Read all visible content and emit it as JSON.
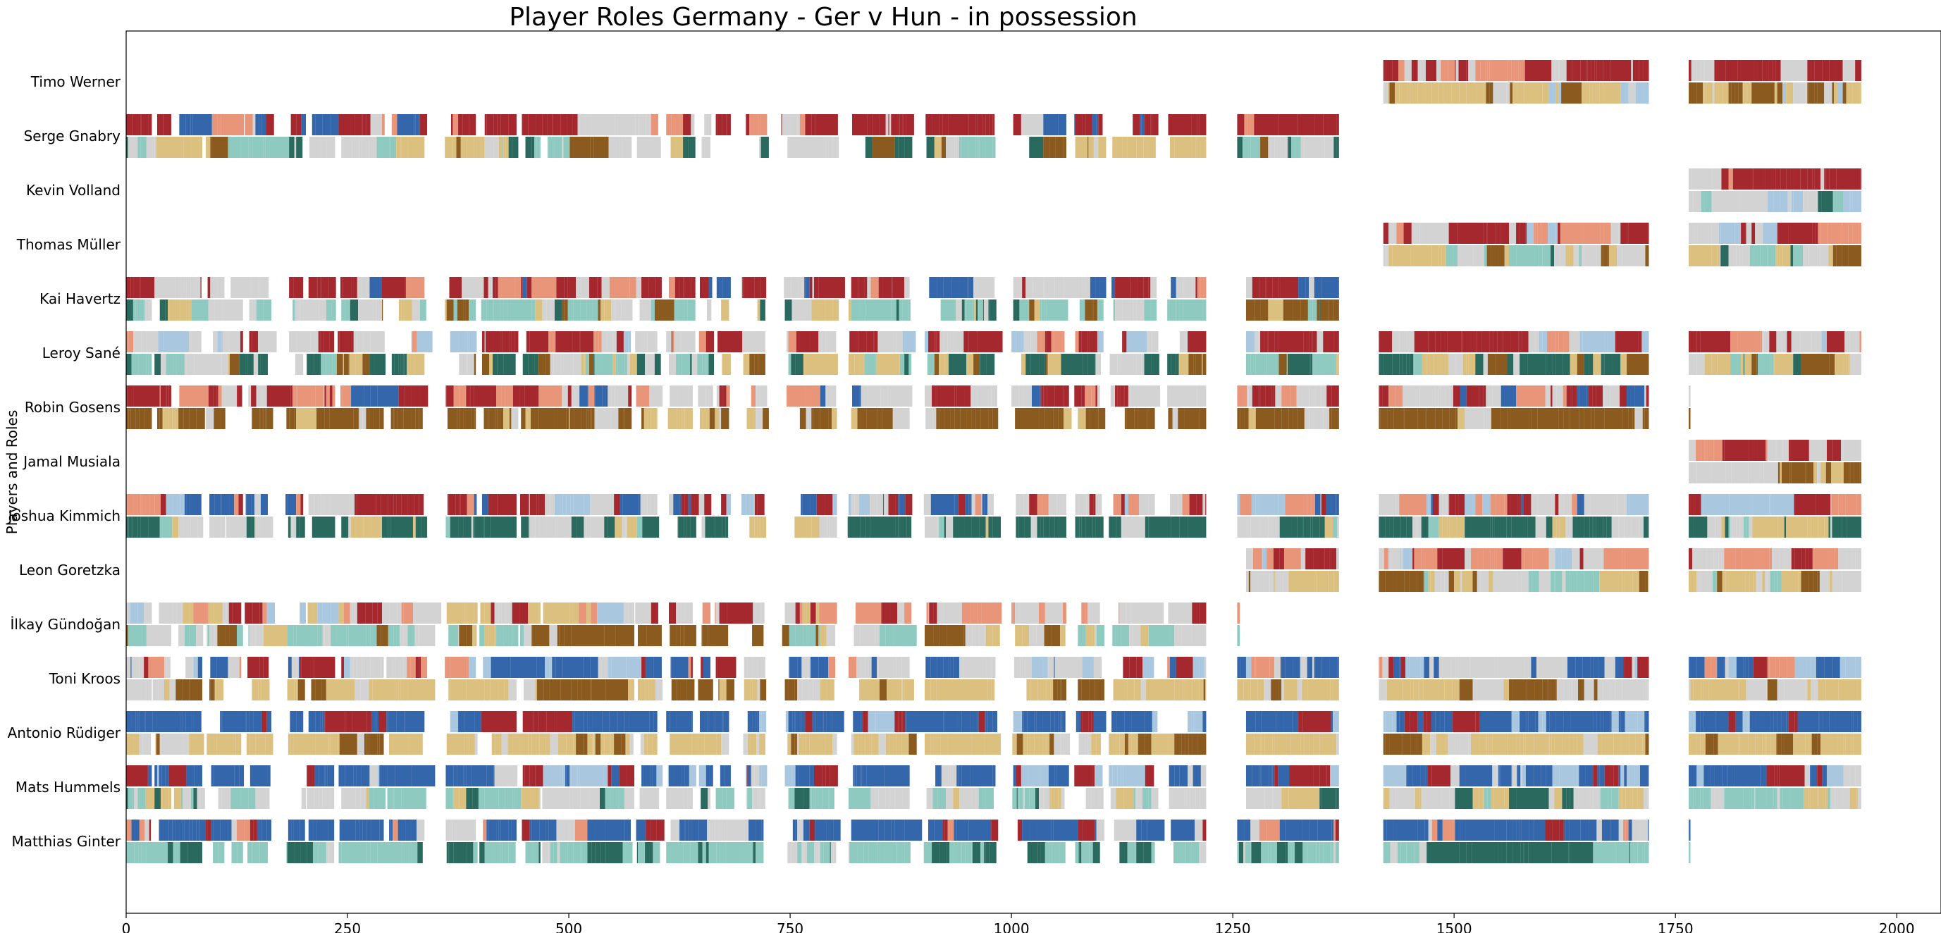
{
  "chart_data": {
    "type": "bar",
    "orientation": "horizontal-timeline",
    "title": "Player Roles Germany - Ger v Hun - in possession",
    "ylabel": "Players and Roles",
    "xlabel": "",
    "xlim": [
      0,
      2050
    ],
    "xticks": [
      "0",
      "250",
      "500",
      "750",
      "1000",
      "1250",
      "1500",
      "1750",
      "2000"
    ],
    "xtick_values": [
      0,
      250,
      500,
      750,
      1000,
      1250,
      1500,
      1750,
      2000
    ],
    "grid": false,
    "legend": "none",
    "palette": {
      "dark_red": "#a5282f",
      "salmon": "#e8957a",
      "light_gray": "#d3d3d3",
      "light_blue": "#a9c8e0",
      "blue": "#3366aa",
      "tan": "#dcc080",
      "brown": "#8b5a1e",
      "teal_light": "#8fcac0",
      "teal_dark": "#2a6a5e"
    },
    "players": [
      {
        "name": "Timo Werner",
        "segments": [
          [
            1420,
            1720
          ],
          [
            1765,
            1960
          ]
        ],
        "top": [
          "dark_red",
          "dark_red",
          "dark_red",
          "light_gray",
          "salmon",
          "dark_red",
          "light_gray",
          "dark_red"
        ],
        "bottom": [
          "tan",
          "light_gray",
          "tan",
          "light_blue",
          "brown",
          "tan",
          "light_gray",
          "brown"
        ]
      },
      {
        "name": "Serge Gnabry",
        "segments": [
          [
            0,
            1220
          ],
          [
            1255,
            1370
          ]
        ],
        "top": [
          "dark_red",
          "dark_red",
          "light_gray",
          "dark_red",
          "salmon",
          "dark_red",
          "light_gray",
          "blue"
        ],
        "bottom": [
          "teal_light",
          "light_gray",
          "tan",
          "teal_dark",
          "brown",
          "teal_light",
          "light_gray",
          "tan"
        ]
      },
      {
        "name": "Kevin Volland",
        "segments": [
          [
            1765,
            1960
          ]
        ],
        "top": [
          "dark_red",
          "dark_red",
          "light_gray",
          "dark_red",
          "salmon"
        ],
        "bottom": [
          "teal_light",
          "light_gray",
          "teal_dark",
          "light_blue",
          "teal_light"
        ]
      },
      {
        "name": "Thomas Müller",
        "segments": [
          [
            1420,
            1720
          ],
          [
            1765,
            1960
          ]
        ],
        "top": [
          "dark_red",
          "light_gray",
          "dark_red",
          "salmon",
          "dark_red",
          "light_gray",
          "light_blue"
        ],
        "bottom": [
          "teal_dark",
          "teal_light",
          "light_gray",
          "tan",
          "teal_light",
          "brown",
          "light_gray"
        ]
      },
      {
        "name": "Kai Havertz",
        "segments": [
          [
            0,
            1220
          ],
          [
            1265,
            1370
          ]
        ],
        "top": [
          "dark_red",
          "dark_red",
          "light_gray",
          "dark_red",
          "salmon",
          "blue",
          "light_gray"
        ],
        "bottom": [
          "teal_light",
          "tan",
          "teal_dark",
          "light_gray",
          "brown",
          "teal_light",
          "light_gray"
        ]
      },
      {
        "name": "Leroy Sané",
        "segments": [
          [
            0,
            1220
          ],
          [
            1265,
            1370
          ],
          [
            1415,
            1720
          ],
          [
            1765,
            1960
          ]
        ],
        "top": [
          "dark_red",
          "light_gray",
          "dark_red",
          "salmon",
          "dark_red",
          "light_gray",
          "light_blue"
        ],
        "bottom": [
          "tan",
          "brown",
          "teal_dark",
          "teal_light",
          "light_gray",
          "teal_dark",
          "tan"
        ]
      },
      {
        "name": "Robin Gosens",
        "segments": [
          [
            0,
            1220
          ],
          [
            1255,
            1370
          ],
          [
            1415,
            1720
          ],
          [
            1765,
            1767
          ]
        ],
        "top": [
          "dark_red",
          "light_gray",
          "dark_red",
          "blue",
          "light_gray",
          "dark_red",
          "salmon"
        ],
        "bottom": [
          "brown",
          "brown",
          "tan",
          "brown",
          "light_gray",
          "brown",
          "brown"
        ]
      },
      {
        "name": "Jamal Musiala",
        "segments": [
          [
            1765,
            1960
          ]
        ],
        "top": [
          "dark_red",
          "light_gray",
          "salmon",
          "dark_red",
          "light_gray"
        ],
        "bottom": [
          "brown",
          "tan",
          "light_gray",
          "brown",
          "tan"
        ]
      },
      {
        "name": "Joshua Kimmich",
        "segments": [
          [
            0,
            1220
          ],
          [
            1255,
            1370
          ],
          [
            1415,
            1720
          ],
          [
            1765,
            1960
          ]
        ],
        "top": [
          "dark_red",
          "light_gray",
          "dark_red",
          "salmon",
          "light_blue",
          "blue",
          "light_gray"
        ],
        "bottom": [
          "teal_dark",
          "teal_dark",
          "light_gray",
          "teal_dark",
          "tan",
          "teal_light",
          "light_gray"
        ]
      },
      {
        "name": "Leon Goretzka",
        "segments": [
          [
            1265,
            1370
          ],
          [
            1415,
            1720
          ],
          [
            1765,
            1960
          ]
        ],
        "top": [
          "salmon",
          "light_gray",
          "dark_red",
          "light_blue",
          "light_gray",
          "salmon"
        ],
        "bottom": [
          "tan",
          "light_gray",
          "brown",
          "teal_light",
          "tan",
          "light_gray"
        ]
      },
      {
        "name": "İlkay Gündoğan",
        "segments": [
          [
            0,
            1220
          ],
          [
            1255,
            1258
          ]
        ],
        "top": [
          "light_gray",
          "light_blue",
          "salmon",
          "light_gray",
          "dark_red",
          "tan"
        ],
        "bottom": [
          "light_gray",
          "teal_light",
          "tan",
          "light_gray",
          "brown",
          "teal_light"
        ]
      },
      {
        "name": "Toni Kroos",
        "segments": [
          [
            0,
            1220
          ],
          [
            1255,
            1370
          ],
          [
            1415,
            1720
          ],
          [
            1765,
            1960
          ]
        ],
        "top": [
          "blue",
          "light_blue",
          "light_gray",
          "blue",
          "salmon",
          "light_gray",
          "dark_red"
        ],
        "bottom": [
          "tan",
          "light_gray",
          "tan",
          "brown",
          "tan",
          "light_gray",
          "brown"
        ]
      },
      {
        "name": "Antonio Rüdiger",
        "segments": [
          [
            0,
            1220
          ],
          [
            1265,
            1370
          ],
          [
            1420,
            1720
          ],
          [
            1765,
            1960
          ]
        ],
        "top": [
          "blue",
          "blue",
          "blue",
          "dark_red",
          "blue",
          "light_blue",
          "blue"
        ],
        "bottom": [
          "tan",
          "tan",
          "brown",
          "tan",
          "tan",
          "light_gray",
          "tan"
        ]
      },
      {
        "name": "Mats Hummels",
        "segments": [
          [
            0,
            1220
          ],
          [
            1265,
            1370
          ],
          [
            1420,
            1720
          ],
          [
            1765,
            1960
          ]
        ],
        "top": [
          "blue",
          "blue",
          "light_gray",
          "blue",
          "dark_red",
          "blue",
          "light_blue"
        ],
        "bottom": [
          "light_gray",
          "teal_light",
          "light_gray",
          "tan",
          "teal_light",
          "light_gray",
          "teal_dark"
        ]
      },
      {
        "name": "Matthias Ginter",
        "segments": [
          [
            0,
            1220
          ],
          [
            1255,
            1370
          ],
          [
            1420,
            1720
          ],
          [
            1765,
            1767
          ]
        ],
        "top": [
          "blue",
          "blue",
          "light_gray",
          "blue",
          "dark_red",
          "blue",
          "salmon"
        ],
        "bottom": [
          "teal_light",
          "teal_dark",
          "teal_light",
          "teal_light",
          "teal_dark",
          "light_gray",
          "teal_light"
        ]
      }
    ],
    "gaps": [
      [
        28,
        30
      ],
      [
        50,
        52
      ],
      [
        85,
        90
      ],
      [
        110,
        113
      ],
      [
        130,
        134
      ],
      [
        160,
        180
      ],
      [
        200,
        204
      ],
      [
        235,
        238
      ],
      [
        290,
        294
      ],
      [
        335,
        360
      ],
      [
        395,
        398
      ],
      [
        440,
        445
      ],
      [
        468,
        470
      ],
      [
        570,
        575
      ],
      [
        600,
        610
      ],
      [
        640,
        645
      ],
      [
        660,
        665
      ],
      [
        680,
        695
      ],
      [
        720,
        740
      ],
      [
        800,
        815
      ],
      [
        885,
        900
      ],
      [
        980,
        1000
      ],
      [
        1060,
        1070
      ],
      [
        1100,
        1110
      ],
      [
        1160,
        1175
      ]
    ]
  }
}
